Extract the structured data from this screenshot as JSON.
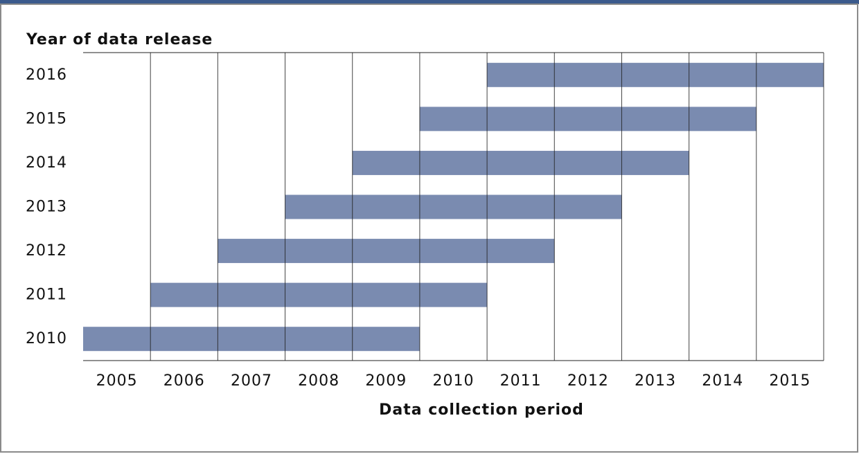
{
  "chart_data": {
    "type": "gantt",
    "y_label": "Year of data release",
    "x_label": "Data collection period",
    "categories": [
      "2010",
      "2011",
      "2012",
      "2013",
      "2014",
      "2015",
      "2016"
    ],
    "series": [
      {
        "color": "#7a8bb0",
        "start": [
          2005,
          2006,
          2007,
          2008,
          2009,
          2010,
          2011
        ],
        "end": [
          2009,
          2010,
          2011,
          2012,
          2013,
          2014,
          2015
        ]
      }
    ],
    "xlim": [
      2004.5,
      2015.5
    ],
    "xticks": [
      2005,
      2006,
      2007,
      2008,
      2009,
      2010,
      2011,
      2012,
      2013,
      2014,
      2015
    ],
    "grid": true
  }
}
